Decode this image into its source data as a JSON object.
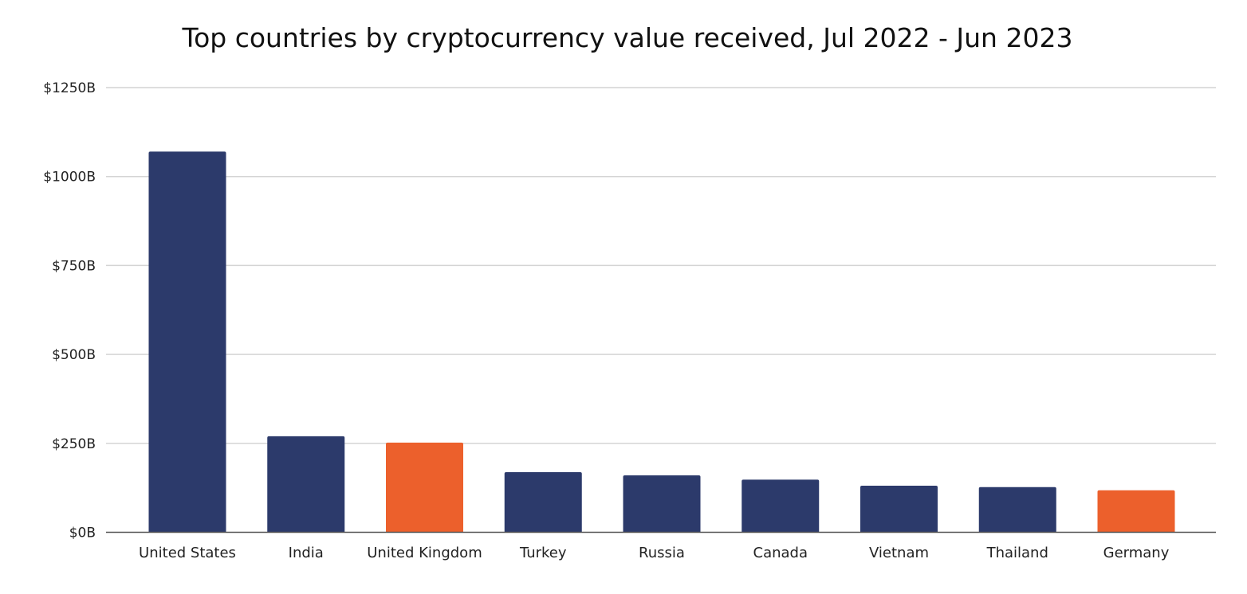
{
  "chart_data": {
    "type": "bar",
    "title": "Top countries by cryptocurrency value received, Jul 2022 - Jun 2023",
    "xlabel": "",
    "ylabel": "",
    "ylim": [
      0,
      1250
    ],
    "yticks": [
      0,
      250,
      500,
      750,
      1000,
      1250
    ],
    "ytick_labels": [
      "$0B",
      "$250B",
      "$500B",
      "$750B",
      "$1000B",
      "$1250B"
    ],
    "grid": true,
    "categories": [
      "United States",
      "India",
      "United Kingdom",
      "Turkey",
      "Russia",
      "Canada",
      "Vietnam",
      "Thailand",
      "Germany"
    ],
    "values": [
      1070,
      270,
      252,
      169,
      160,
      148,
      131,
      127,
      118
    ],
    "colors": [
      "#2c3a6b",
      "#2c3a6b",
      "#ec602c",
      "#2c3a6b",
      "#2c3a6b",
      "#2c3a6b",
      "#2c3a6b",
      "#2c3a6b",
      "#ec602c"
    ],
    "unit": "USD billions"
  }
}
